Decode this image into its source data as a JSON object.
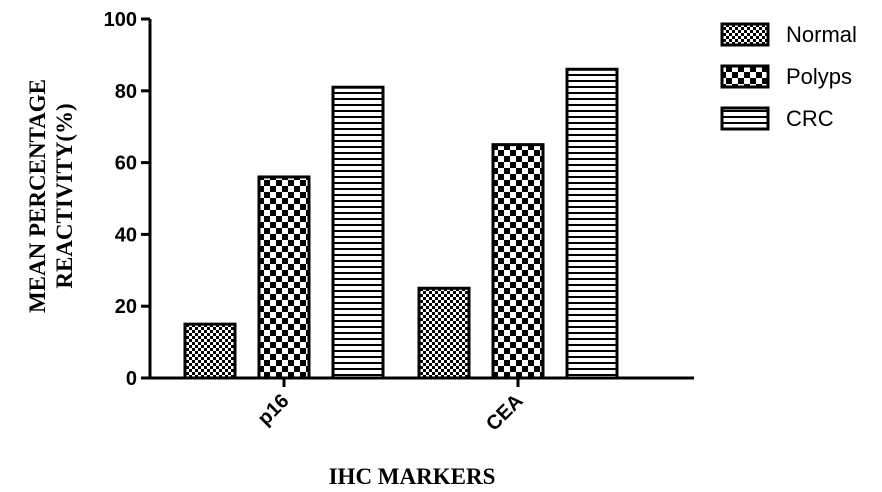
{
  "chart_data": {
    "type": "bar",
    "categories": [
      "p16",
      "CEA"
    ],
    "series": [
      {
        "name": "Normal",
        "values": [
          15,
          25
        ],
        "pattern": "fine-check"
      },
      {
        "name": "Polyps",
        "values": [
          56,
          65
        ],
        "pattern": "checkerboard"
      },
      {
        "name": "CRC",
        "values": [
          81,
          86
        ],
        "pattern": "horizontal-lines"
      }
    ],
    "xlabel": "IHC MARKERS",
    "ylabel_lines": [
      "MEAN PERCENTAGE",
      "REACTIVITY(%)"
    ],
    "ylim": [
      0,
      100
    ],
    "yticks": [
      "0",
      "20",
      "40",
      "60",
      "80",
      "100"
    ],
    "legend_position": "top-right",
    "grid": false,
    "bar_stroke_color": "#000000",
    "bar_fill_color": "#ffffff"
  }
}
